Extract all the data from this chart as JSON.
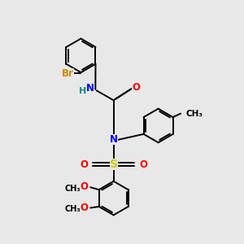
{
  "bg_color": "#e8e8e8",
  "bond_color": "#000000",
  "N_color": "#0000ff",
  "O_color": "#ff0000",
  "S_color": "#cccc00",
  "Br_color": "#cc8800",
  "H_color": "#008888",
  "figsize": [
    3.0,
    3.0
  ],
  "dpi": 100,
  "xlim": [
    0,
    10
  ],
  "ylim": [
    0,
    10
  ]
}
